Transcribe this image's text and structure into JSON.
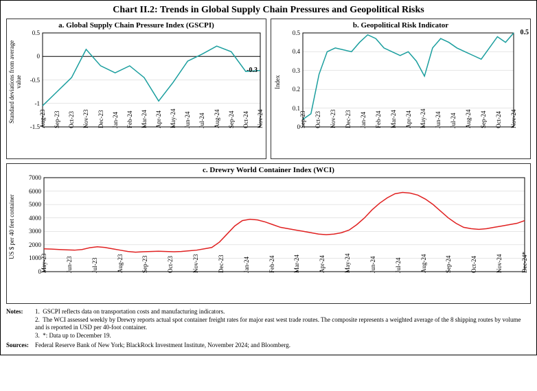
{
  "main_title": "Chart II.2: Trends in Global Supply Chain Pressures and Geopolitical Risks",
  "panel_a": {
    "title": "a. Global Supply Chain Pressure Index (GSCPI)",
    "ylabel": "Standard deviations from\naverage value",
    "ylim": [
      -1.5,
      0.5
    ],
    "yticks": [
      -1.5,
      -1.0,
      -0.5,
      0.0,
      0.5
    ],
    "xticks": [
      "Aug-23",
      "Sep-23",
      "Oct-23",
      "Nov-23",
      "Dec-23",
      "Jan-24",
      "Feb-24",
      "Mar-24",
      "Apr-24",
      "May-24",
      "Jun-24",
      "Jul-24",
      "Aug-24",
      "Sep-24",
      "Oct-24",
      "Nov-24"
    ],
    "line_color": "#1a9e9e",
    "values": [
      -1.05,
      -0.75,
      -0.45,
      0.15,
      -0.2,
      -0.35,
      -0.2,
      -0.45,
      -0.95,
      -0.55,
      -0.1,
      0.05,
      0.22,
      0.1,
      -0.32,
      -0.3
    ],
    "end_label": "-0.3",
    "grid_color": "#d0d0d0",
    "zero_line": true
  },
  "panel_b": {
    "title": "b. Geopolitical Risk Indicator",
    "ylabel": "Index",
    "ylim": [
      0,
      0.5
    ],
    "yticks": [
      0,
      0.1,
      0.2,
      0.3,
      0.4,
      0.5
    ],
    "xticks": [
      "Sep-23",
      "Oct-23",
      "Nov-23",
      "Dec-23",
      "Jan-24",
      "Feb-24",
      "Mar-24",
      "Apr-24",
      "May-24",
      "Jun-24",
      "Jul-24",
      "Aug-24",
      "Sep-24",
      "Oct-24",
      "Nov-24"
    ],
    "line_color": "#1a9e9e",
    "values": [
      0.04,
      0.07,
      0.28,
      0.4,
      0.42,
      0.41,
      0.4,
      0.45,
      0.49,
      0.47,
      0.42,
      0.4,
      0.38,
      0.4,
      0.35,
      0.27,
      0.42,
      0.47,
      0.45,
      0.42,
      0.4,
      0.38,
      0.36,
      0.42,
      0.48,
      0.45,
      0.5
    ],
    "end_label": "0.5",
    "grid_color": "#d0d0d0"
  },
  "panel_c": {
    "title": "c. Drewry World Container Index (WCI)",
    "ylabel": "US $ per 40 feet container",
    "ylim": [
      0,
      7000
    ],
    "yticks": [
      0,
      1000,
      2000,
      3000,
      4000,
      5000,
      6000,
      7000
    ],
    "xticks": [
      "May-23",
      "Jun-23",
      "Jul-23",
      "Aug-23",
      "Sep-23",
      "Oct-23",
      "Nov-23",
      "Dec-23",
      "Jan-24",
      "Feb-24",
      "Mar-24",
      "Apr-24",
      "May-24",
      "Jun-24",
      "Jul-24",
      "Aug-24",
      "Sep-24",
      "Oct-24",
      "Nov-24",
      "Dec-24*"
    ],
    "line_color": "#e02020",
    "values": [
      1700,
      1680,
      1650,
      1620,
      1600,
      1650,
      1780,
      1850,
      1800,
      1700,
      1600,
      1500,
      1450,
      1480,
      1500,
      1520,
      1500,
      1480,
      1500,
      1550,
      1600,
      1700,
      1800,
      2200,
      2800,
      3400,
      3800,
      3900,
      3850,
      3700,
      3500,
      3300,
      3200,
      3100,
      3000,
      2900,
      2800,
      2750,
      2800,
      2900,
      3100,
      3500,
      4000,
      4600,
      5100,
      5500,
      5800,
      5900,
      5850,
      5700,
      5400,
      5000,
      4500,
      4000,
      3600,
      3300,
      3200,
      3150,
      3200,
      3300,
      3400,
      3500,
      3600,
      3800
    ],
    "grid_color": "#d0d0d0"
  },
  "notes": {
    "label": "Notes:",
    "items": [
      "GSCPI reflects data on transportation costs and manufacturing indicators.",
      "The WCI assessed weekly by Drewry reports actual spot container freight rates for major east west trade routes. The composite represents a weighted average of the 8 shipping routes by volume and is reported in USD per 40-foot container.",
      "*: Data up to December 19."
    ],
    "sources_label": "Sources:",
    "sources": "Federal Reserve Bank of New York; BlackRock Investment Institute, November 2024; and Bloomberg."
  }
}
